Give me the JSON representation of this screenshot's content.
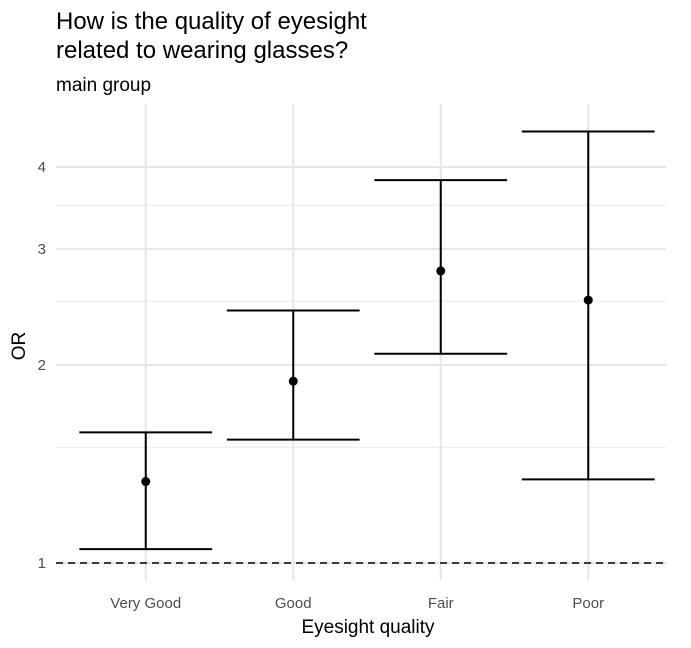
{
  "chart_data": {
    "type": "errorbar",
    "title_lines": [
      "How is the quality of eyesight",
      "related to wearing glasses?"
    ],
    "subtitle": "main group",
    "xlabel": "Eyesight quality",
    "ylabel": "OR",
    "y_scale": "log",
    "y_ticks": [
      1,
      2,
      3,
      4
    ],
    "y_tick_labels": [
      "1",
      "2",
      "3",
      "4"
    ],
    "y_minor_ticks": [
      1.5,
      2.5,
      3.5
    ],
    "ylim": [
      0.96,
      4.7
    ],
    "reference_line": {
      "y": 1,
      "style": "dashed"
    },
    "grid": true,
    "categories": [
      "Very Good",
      "Good",
      "Fair",
      "Poor"
    ],
    "estimates": [
      1.33,
      1.89,
      2.78,
      2.51
    ],
    "lower": [
      1.05,
      1.54,
      2.08,
      1.34
    ],
    "upper": [
      1.58,
      2.42,
      3.82,
      4.53
    ]
  }
}
